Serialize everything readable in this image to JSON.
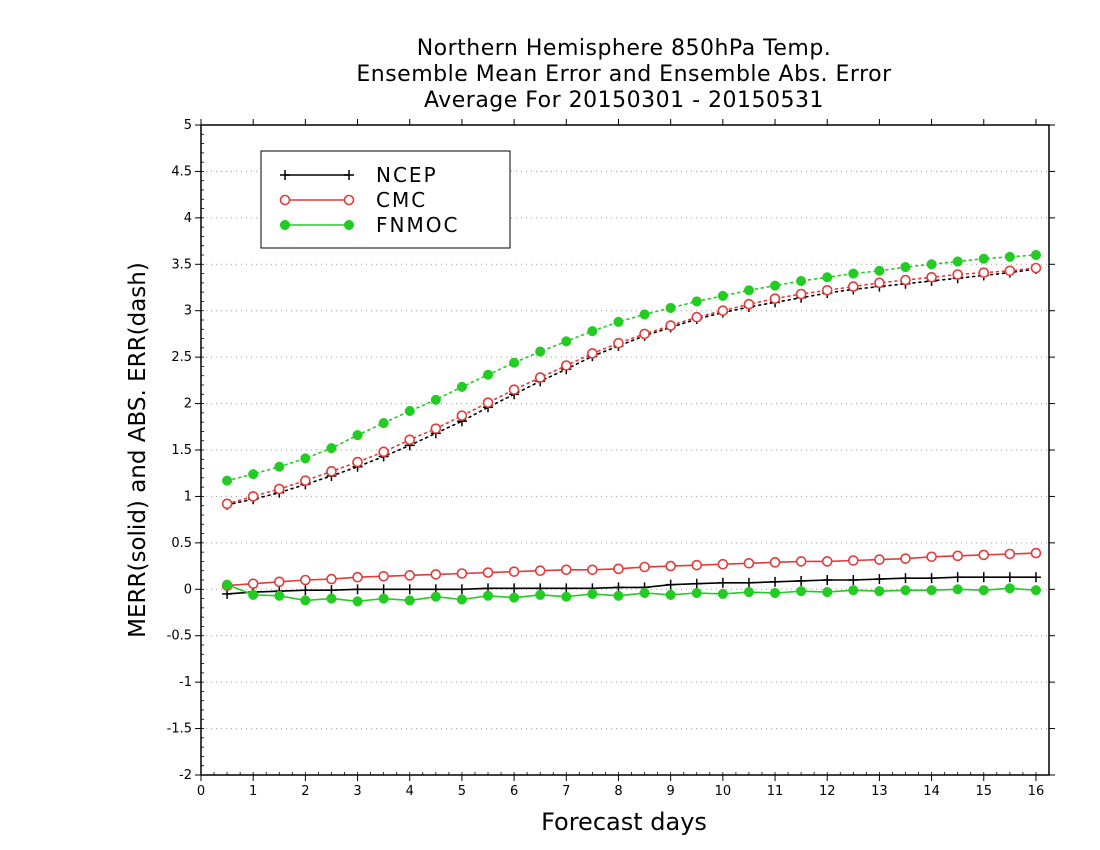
{
  "chart_data": {
    "type": "line",
    "title_lines": [
      "Northern Hemisphere 850hPa Temp.",
      "Ensemble Mean Error and Ensemble Abs. Error",
      "Average For 20150301 - 20150531"
    ],
    "xlabel": "Forecast days",
    "ylabel": "MERR(solid) and ABS. ERR(dash)",
    "xlim": [
      0,
      16.25
    ],
    "ylim": [
      -2,
      5
    ],
    "x_ticks": [
      0,
      1,
      2,
      3,
      4,
      5,
      6,
      7,
      8,
      9,
      10,
      11,
      12,
      13,
      14,
      15,
      16
    ],
    "y_ticks": [
      -2,
      -1.5,
      -1,
      -0.5,
      0,
      0.5,
      1,
      1.5,
      2,
      2.5,
      3,
      3.5,
      4,
      4.5,
      5
    ],
    "x_tick_labels": [
      "0",
      "1",
      "2",
      "3",
      "4",
      "5",
      "6",
      "7",
      "8",
      "9",
      "10",
      "11",
      "12",
      "13",
      "14",
      "15",
      "16"
    ],
    "y_tick_labels": [
      "-2",
      "-1.5",
      "-1",
      "-0.5",
      "0",
      "0.5",
      "1",
      "1.5",
      "2",
      "2.5",
      "3",
      "3.5",
      "4",
      "4.5",
      "5"
    ],
    "grid": "horizontal dotted",
    "legend_position": "top-left",
    "x": [
      0.5,
      1,
      1.5,
      2,
      2.5,
      3,
      3.5,
      4,
      4.5,
      5,
      5.5,
      6,
      6.5,
      7,
      7.5,
      8,
      8.5,
      9,
      9.5,
      10,
      10.5,
      11,
      11.5,
      12,
      12.5,
      13,
      13.5,
      14,
      14.5,
      15,
      15.5,
      16
    ],
    "series": [
      {
        "name": "NCEP",
        "color": "#000000",
        "marker": "plus",
        "merr": [
          -0.05,
          -0.03,
          -0.02,
          -0.01,
          -0.01,
          0,
          0,
          0,
          0,
          0,
          0.01,
          0.01,
          0.01,
          0.01,
          0.01,
          0.02,
          0.02,
          0.05,
          0.06,
          0.07,
          0.07,
          0.08,
          0.09,
          0.1,
          0.1,
          0.11,
          0.12,
          0.12,
          0.13,
          0.13,
          0.13,
          0.13
        ],
        "abs_err": [
          0.91,
          0.97,
          1.04,
          1.13,
          1.22,
          1.32,
          1.43,
          1.55,
          1.68,
          1.81,
          1.96,
          2.1,
          2.24,
          2.37,
          2.51,
          2.62,
          2.73,
          2.82,
          2.91,
          2.98,
          3.04,
          3.09,
          3.14,
          3.19,
          3.23,
          3.26,
          3.29,
          3.32,
          3.35,
          3.38,
          3.41,
          3.45
        ]
      },
      {
        "name": "CMC",
        "color": "#e33a3a",
        "marker": "open-circle",
        "merr": [
          0.04,
          0.06,
          0.08,
          0.1,
          0.11,
          0.13,
          0.14,
          0.15,
          0.16,
          0.17,
          0.18,
          0.19,
          0.2,
          0.21,
          0.21,
          0.22,
          0.24,
          0.25,
          0.26,
          0.27,
          0.28,
          0.29,
          0.3,
          0.3,
          0.31,
          0.32,
          0.33,
          0.35,
          0.36,
          0.37,
          0.38,
          0.39
        ],
        "abs_err": [
          0.92,
          1.0,
          1.08,
          1.17,
          1.27,
          1.37,
          1.48,
          1.61,
          1.73,
          1.87,
          2.01,
          2.15,
          2.28,
          2.41,
          2.54,
          2.65,
          2.75,
          2.84,
          2.93,
          3.0,
          3.07,
          3.13,
          3.18,
          3.22,
          3.26,
          3.3,
          3.33,
          3.36,
          3.39,
          3.41,
          3.43,
          3.46
        ]
      },
      {
        "name": "FNMOC",
        "color": "#22cc22",
        "marker": "filled-circle",
        "merr": [
          0.05,
          -0.06,
          -0.07,
          -0.12,
          -0.1,
          -0.13,
          -0.1,
          -0.12,
          -0.08,
          -0.11,
          -0.07,
          -0.09,
          -0.06,
          -0.08,
          -0.05,
          -0.07,
          -0.04,
          -0.06,
          -0.04,
          -0.05,
          -0.03,
          -0.04,
          -0.02,
          -0.03,
          -0.01,
          -0.02,
          -0.01,
          -0.01,
          0,
          -0.01,
          0.01,
          -0.01
        ],
        "abs_err": [
          1.17,
          1.24,
          1.32,
          1.41,
          1.52,
          1.66,
          1.79,
          1.92,
          2.04,
          2.18,
          2.31,
          2.44,
          2.56,
          2.67,
          2.78,
          2.88,
          2.96,
          3.03,
          3.1,
          3.16,
          3.22,
          3.27,
          3.32,
          3.36,
          3.4,
          3.43,
          3.47,
          3.5,
          3.53,
          3.56,
          3.58,
          3.6
        ]
      }
    ]
  }
}
